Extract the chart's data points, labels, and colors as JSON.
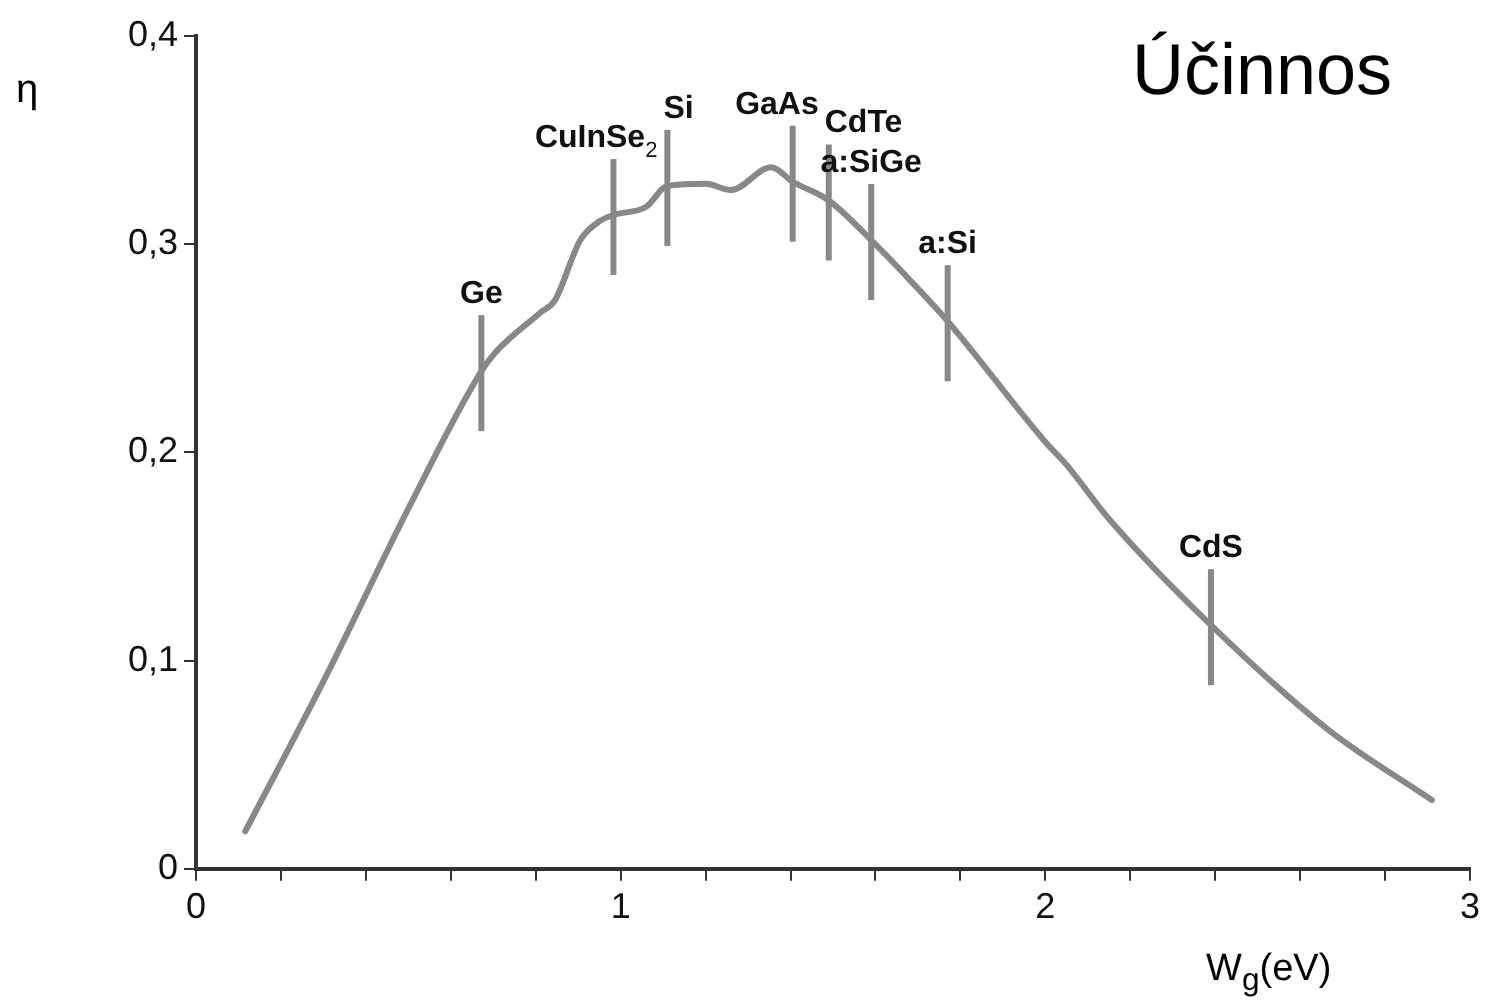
{
  "chart_data": {
    "type": "line",
    "title": "Účinnos",
    "xlabel": "W$_{g}$(eV)",
    "ylabel": "η",
    "x": [
      0.116,
      0.3,
      0.505,
      0.672,
      0.705,
      0.81,
      0.845,
      0.905,
      0.95,
      0.983,
      1.06,
      1.11,
      1.2,
      1.26,
      1.354,
      1.405,
      1.49,
      1.59,
      1.68,
      1.77,
      2.0,
      2.05,
      2.15,
      2.39,
      2.665,
      2.91
    ],
    "series": [
      {
        "color": "#888888",
        "values": [
          0.018,
          0.09,
          0.175,
          0.239,
          0.248,
          0.267,
          0.273,
          0.302,
          0.311,
          0.314,
          0.318,
          0.328,
          0.329,
          0.326,
          0.337,
          0.33,
          0.321,
          0.302,
          0.283,
          0.263,
          0.205,
          0.194,
          0.168,
          0.117,
          0.067,
          0.033
        ]
      }
    ],
    "xlim": [
      0,
      3
    ],
    "ylim": [
      0,
      0.4
    ],
    "xticks": [
      0,
      {
        "value": 0.2,
        "label": null
      },
      {
        "value": 0.4,
        "label": null
      },
      {
        "value": 0.6,
        "label": null
      },
      {
        "value": 0.8,
        "label": null
      },
      1,
      {
        "value": 1.2,
        "label": null
      },
      {
        "value": 1.4,
        "label": null
      },
      {
        "value": 1.6,
        "label": null
      },
      {
        "value": 1.8,
        "label": null
      },
      2,
      {
        "value": 2.2,
        "label": null
      },
      {
        "value": 2.4,
        "label": null
      },
      {
        "value": 2.6,
        "label": null
      },
      {
        "value": 2.8,
        "label": null
      },
      3
    ],
    "yticks": [
      0,
      {
        "value": 0.1,
        "label": "0,1"
      },
      {
        "value": 0.2,
        "label": "0,2"
      },
      {
        "value": 0.3,
        "label": "0,3"
      },
      {
        "value": 0.4,
        "label": "0,4"
      }
    ],
    "grid": false,
    "legend": false,
    "marker": "none",
    "line_style": "solid",
    "annotations": [
      {
        "text": "Ge",
        "x": 0.672,
        "y": 0.239
      },
      {
        "text": "CuInSe$_{2}$",
        "x": 0.983,
        "y": 0.314
      },
      {
        "text": "Si",
        "x": 1.11,
        "y": 0.328
      },
      {
        "text": "GaAs",
        "x": 1.405,
        "y": 0.33
      },
      {
        "text": "CdTe",
        "x": 1.49,
        "y": 0.321
      },
      {
        "text": "a:SiGe",
        "x": 1.59,
        "y": 0.302
      },
      {
        "text": "a:Si",
        "x": 1.77,
        "y": 0.263
      },
      {
        "text": "CdS",
        "x": 2.39,
        "y": 0.117
      }
    ]
  }
}
